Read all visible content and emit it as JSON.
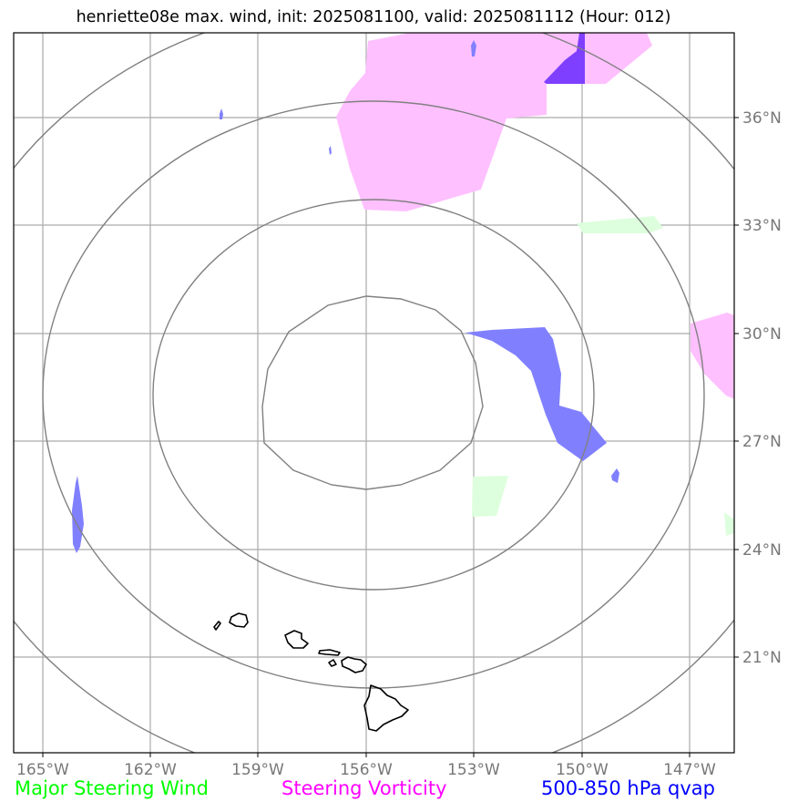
{
  "title": "henriette08e max. wind, init: 2025081100, valid: 2025081112 (Hour: 012)",
  "map": {
    "x_axis_ticks": [
      "165°W",
      "162°W",
      "159°W",
      "156°W",
      "153°W",
      "150°W",
      "147°W"
    ],
    "y_axis_ticks": [
      "36°N",
      "33°N",
      "30°N",
      "27°N",
      "24°N",
      "21°N"
    ],
    "gridlines": true,
    "range_rings": 4,
    "landmass": "Hawaiian Islands",
    "colors": {
      "gridline": "#aaaaaa",
      "range_ring": "#808080",
      "coastline": "#000000",
      "steering_wind_fill": "#ddffdd",
      "vorticity_fill": "#ffc0ff",
      "qvap_fill": "#8080ff",
      "overlap_fill": "#7f3fff"
    }
  },
  "legend": [
    {
      "label": "Major Steering Wind",
      "color": "#00ff00"
    },
    {
      "label": "Steering Vorticity",
      "color": "#ff00ff"
    },
    {
      "label": "500-850 hPa qvap",
      "color": "#0000ff"
    }
  ]
}
